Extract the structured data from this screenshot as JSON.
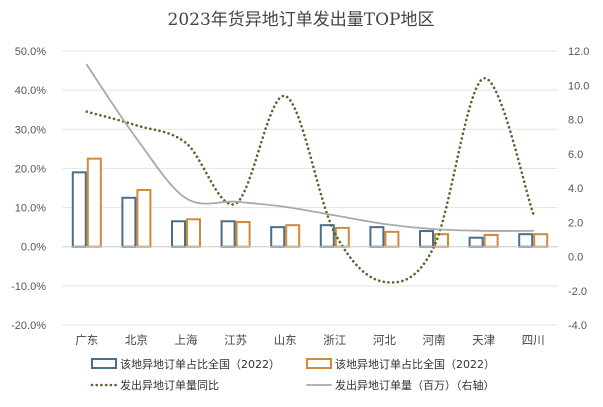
{
  "chart_data": {
    "type": "bar",
    "title": "2023年货异地订单发出量TOP地区",
    "categories": [
      "广东",
      "北京",
      "上海",
      "江苏",
      "山东",
      "浙江",
      "河北",
      "河南",
      "天津",
      "四川"
    ],
    "y_left": {
      "ylim": [
        -20,
        50
      ],
      "step": 10,
      "tick_labels": [
        "-20.0%",
        "-10.0%",
        "0.0%",
        "10.0%",
        "20.0%",
        "30.0%",
        "40.0%",
        "50.0%"
      ]
    },
    "y_right": {
      "ylim": [
        -4,
        12
      ],
      "step": 2,
      "tick_labels": [
        "-4.0",
        "-2.0",
        "0.0",
        "2.0",
        "4.0",
        "6.0",
        "8.0",
        "10.0",
        "12.0"
      ]
    },
    "series": [
      {
        "name": "该地异地订单占比全国（2022）",
        "kind": "bar",
        "axis": "left",
        "color": "#4a6f8a",
        "values": [
          19.0,
          12.5,
          6.5,
          6.5,
          5.0,
          5.5,
          5.0,
          4.0,
          2.3,
          3.2
        ]
      },
      {
        "name": "该地异地订单占比全国（2022）",
        "kind": "bar",
        "axis": "left",
        "color": "#d08a3c",
        "values": [
          22.5,
          14.5,
          7.0,
          6.3,
          5.5,
          4.8,
          3.8,
          3.2,
          3.0,
          3.2
        ]
      },
      {
        "name": "发出异地订单量同比",
        "kind": "line",
        "style": "dotted",
        "axis": "left",
        "color": "#4e6a2e",
        "values": [
          34.5,
          31.0,
          26.5,
          11.0,
          38.5,
          3.5,
          -9.0,
          0.0,
          43.0,
          8.5
        ]
      },
      {
        "name": "发出异地订单量（百万）（右轴）",
        "kind": "line",
        "style": "solid",
        "axis": "right",
        "color": "#a9a9a9",
        "values": [
          11.2,
          6.9,
          3.4,
          3.2,
          2.9,
          2.4,
          1.9,
          1.6,
          1.5,
          1.5
        ]
      }
    ],
    "legend_position": "bottom"
  }
}
